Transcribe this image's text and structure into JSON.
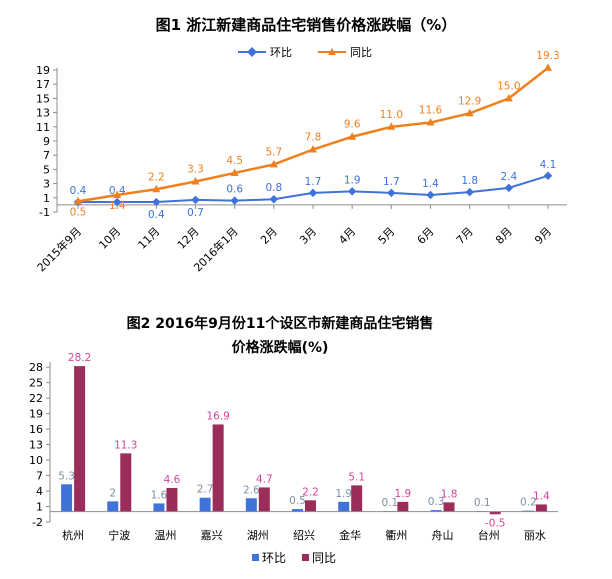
{
  "chart_data": [
    {
      "type": "line",
      "title": "图1   浙江新建商品住宅销售价格涨跌幅（%）",
      "categories": [
        "2015年9月",
        "10月",
        "11月",
        "12月",
        "2016年1月",
        "2月",
        "3月",
        "4月",
        "5月",
        "6月",
        "7月",
        "8月",
        "9月"
      ],
      "yticks": [
        -1,
        1,
        3,
        5,
        7,
        9,
        11,
        13,
        15,
        17,
        19
      ],
      "ylim": [
        -1,
        19
      ],
      "grid": false,
      "legend_position": "top",
      "series": [
        {
          "name": "环比",
          "color": "#3F73D9",
          "values": [
            0.4,
            0.4,
            0.4,
            0.7,
            0.6,
            0.8,
            1.7,
            1.9,
            1.7,
            1.4,
            1.8,
            2.4,
            4.1
          ],
          "label_text": [
            "0.4",
            "0.4",
            "0.4",
            "0.7",
            "0.6",
            "0.8",
            "1.7",
            "1.9",
            "1.7",
            "1.4",
            "1.8",
            "2.4",
            "4.1"
          ]
        },
        {
          "name": "同比",
          "color": "#F0801E",
          "values": [
            0.5,
            1.4,
            2.2,
            3.3,
            4.5,
            5.7,
            7.8,
            9.6,
            11.0,
            11.6,
            12.9,
            15.0,
            19.3
          ],
          "label_text": [
            "0.5",
            "1.4",
            "2.2",
            "3.3",
            "4.5",
            "5.7",
            "7.8",
            "9.6",
            "11.0",
            "11.6",
            "12.9",
            "15.0",
            "19.3"
          ]
        }
      ]
    },
    {
      "type": "bar",
      "title": "图2   2016年9月份11个设区市新建商品住宅销售",
      "subtitle": "价格涨跌幅(%)",
      "categories": [
        "杭州",
        "宁波",
        "温州",
        "嘉兴",
        "湖州",
        "绍兴",
        "金华",
        "衢州",
        "舟山",
        "台州",
        "丽水"
      ],
      "yticks": [
        -2,
        1,
        4,
        7,
        10,
        13,
        16,
        19,
        22,
        25,
        28
      ],
      "ylim": [
        -2,
        29
      ],
      "grid": false,
      "legend_position": "bottom",
      "series": [
        {
          "name": "环比",
          "color": "#3F73D9",
          "label_color": "#7F8FA6",
          "values": [
            5.3,
            2.0,
            1.6,
            2.7,
            2.6,
            0.5,
            1.9,
            0.1,
            0.3,
            0.1,
            0.2
          ],
          "label_text": [
            "5.3",
            "2",
            "1.6",
            "2.7",
            "2.6",
            "0.5",
            "1.9",
            "0.1",
            "0.3",
            "0.1",
            "0.2"
          ]
        },
        {
          "name": "同比",
          "color": "#9B2D5B",
          "label_color": "#D2459A",
          "values": [
            28.2,
            11.3,
            4.6,
            16.9,
            4.7,
            2.2,
            5.1,
            1.9,
            1.8,
            -0.5,
            1.4
          ],
          "label_text": [
            "28.2",
            "11.3",
            "4.6",
            "16.9",
            "4.7",
            "2.2",
            "5.1",
            "1.9",
            "1.8",
            "-0.5",
            "1.4"
          ]
        }
      ]
    }
  ]
}
